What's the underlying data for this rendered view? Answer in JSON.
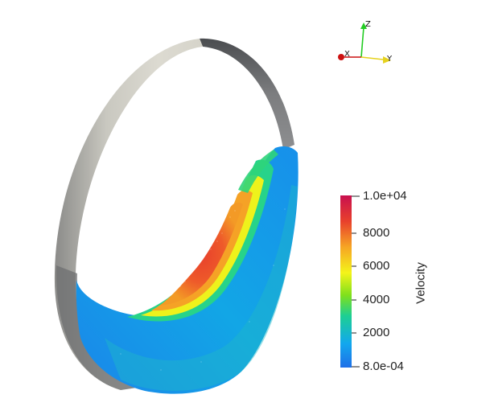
{
  "scene": {
    "background": "#ffffff",
    "ring_colors": {
      "light": "#dddbd2",
      "dark": "#55575a"
    }
  },
  "orientation_axes": {
    "z_label": "Z",
    "x_label": "X",
    "y_label": "Y",
    "colors": {
      "z": "#22cc22",
      "x": "#cc1111",
      "y": "#e6d21e"
    }
  },
  "scalar_bar": {
    "title": "Velocity",
    "max_label": "1.0e+04",
    "tick_8000": "8000",
    "tick_6000": "6000",
    "tick_4000": "4000",
    "tick_2000": "2000",
    "min_label": "8.0e-04",
    "colormap": [
      "#1f6fe8",
      "#12b2ec",
      "#1fd08a",
      "#7fe01c",
      "#f4f41a",
      "#f6a524",
      "#e8402c",
      "#c8104f"
    ]
  }
}
